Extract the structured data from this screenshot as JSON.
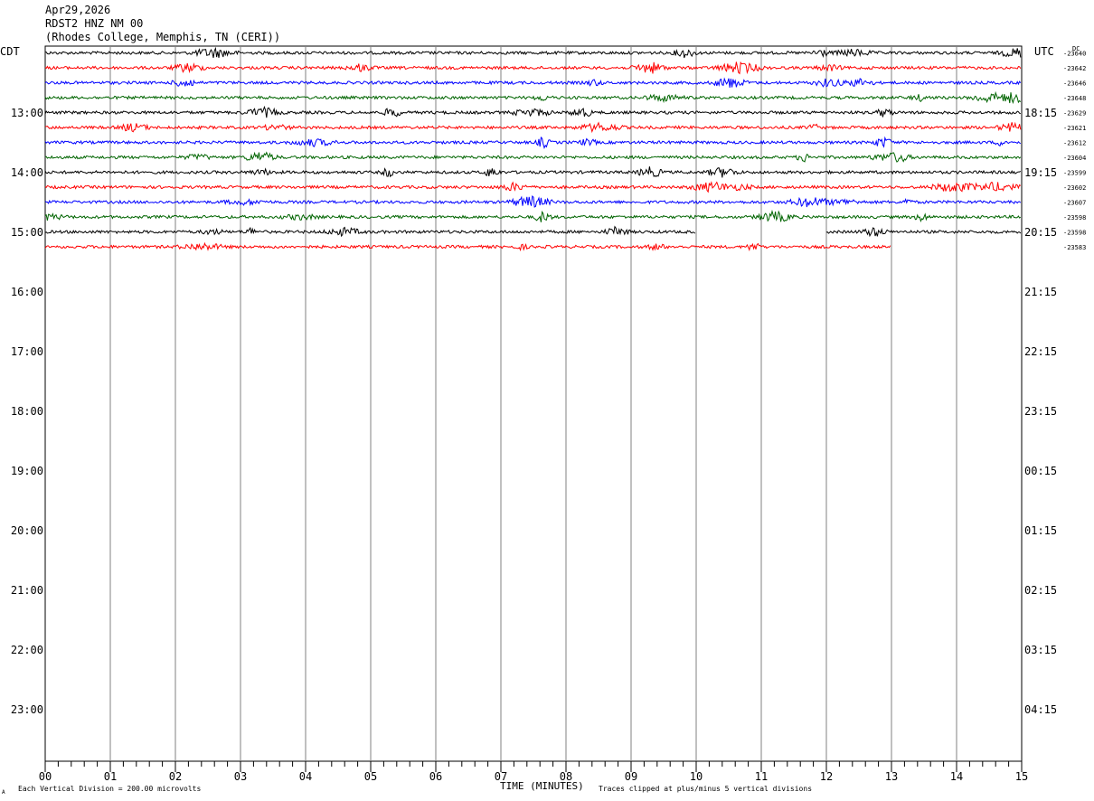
{
  "header": {
    "date": "Apr29,2026",
    "station": "RDST2 HNZ NM 00",
    "location": "(Rhodes College, Memphis, TN (CERI))"
  },
  "chart_data": {
    "type": "line",
    "left_axis_label": "CDT",
    "right_axis_label": "UTC",
    "dc_label": "DC",
    "xlabel": "TIME (MINUTES)",
    "x_ticks": [
      "00",
      "01",
      "02",
      "03",
      "04",
      "05",
      "06",
      "07",
      "08",
      "09",
      "10",
      "11",
      "12",
      "13",
      "14",
      "15"
    ],
    "x_range": [
      0,
      15
    ],
    "grid": true,
    "hour_labels_left": [
      "13:00",
      "14:00",
      "15:00",
      "16:00",
      "17:00",
      "18:00",
      "19:00",
      "20:00",
      "21:00",
      "22:00",
      "23:00"
    ],
    "hour_labels_right": [
      "18:15",
      "19:15",
      "20:15",
      "21:15",
      "22:15",
      "23:15",
      "00:15",
      "01:15",
      "02:15",
      "03:15",
      "04:15"
    ],
    "trace_colors": [
      "#000000",
      "#ff0000",
      "#0000ff",
      "#006400"
    ],
    "traces": [
      {
        "dc": "-23640",
        "color": "#000000",
        "end_min": 15,
        "gaps": []
      },
      {
        "dc": "-23642",
        "color": "#ff0000",
        "end_min": 15,
        "gaps": []
      },
      {
        "dc": "-23646",
        "color": "#0000ff",
        "end_min": 15,
        "gaps": []
      },
      {
        "dc": "-23648",
        "color": "#006400",
        "end_min": 15,
        "gaps": []
      },
      {
        "dc": "-23629",
        "color": "#000000",
        "end_min": 15,
        "gaps": []
      },
      {
        "dc": "-23621",
        "color": "#ff0000",
        "end_min": 15,
        "gaps": []
      },
      {
        "dc": "-23612",
        "color": "#0000ff",
        "end_min": 15,
        "gaps": []
      },
      {
        "dc": "-23604",
        "color": "#006400",
        "end_min": 15,
        "gaps": []
      },
      {
        "dc": "-23599",
        "color": "#000000",
        "end_min": 15,
        "gaps": []
      },
      {
        "dc": "-23602",
        "color": "#ff0000",
        "end_min": 15,
        "gaps": []
      },
      {
        "dc": "-23607",
        "color": "#0000ff",
        "end_min": 15,
        "gaps": []
      },
      {
        "dc": "-23598",
        "color": "#006400",
        "end_min": 15,
        "gaps": []
      },
      {
        "dc": "-23598",
        "color": "#000000",
        "end_min": 15,
        "gaps": [
          [
            10.0,
            12.0
          ]
        ]
      },
      {
        "dc": "-23583",
        "color": "#ff0000",
        "end_min": 13.0,
        "gaps": []
      }
    ]
  },
  "footer": {
    "scale_note": "Each Vertical Division =  200.00 microvolts",
    "clip_note": "Traces clipped at plus/minus 5 vertical divisions",
    "mark": "A"
  }
}
